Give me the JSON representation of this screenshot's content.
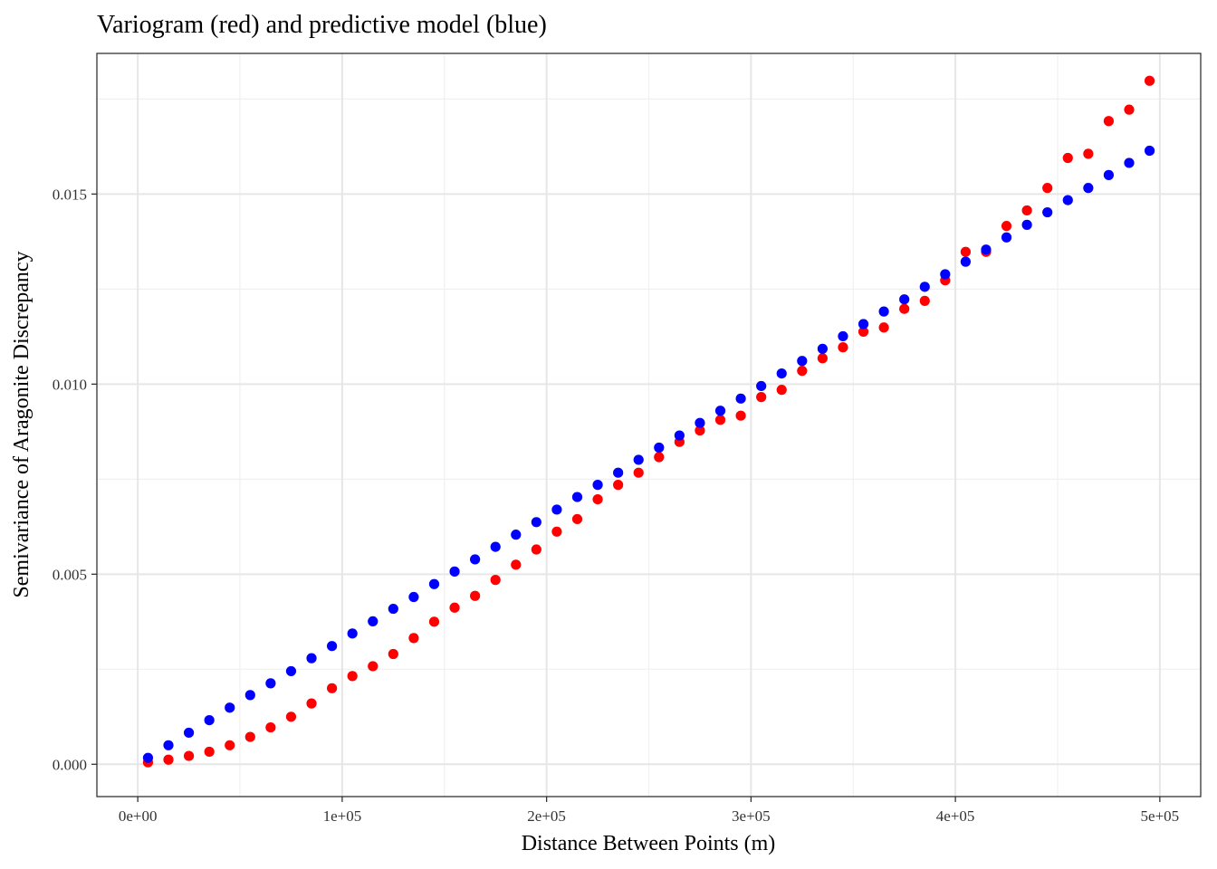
{
  "chart_data": {
    "type": "scatter",
    "title": "Variogram (red) and predictive model (blue)",
    "xlabel": "Distance Between Points (m)",
    "ylabel": "Semivariance of Aragonite Discrepancy",
    "xlim": [
      -20000,
      520000
    ],
    "ylim": [
      -0.00085,
      0.0187
    ],
    "x_ticks": [
      0,
      100000,
      200000,
      300000,
      400000,
      500000
    ],
    "x_tick_labels": [
      "0e+00",
      "1e+05",
      "2e+05",
      "3e+05",
      "4e+05",
      "5e+05"
    ],
    "y_ticks": [
      0,
      0.005,
      0.01,
      0.015
    ],
    "y_tick_labels": [
      "0.000",
      "0.005",
      "0.010",
      "0.015"
    ],
    "grid": true,
    "x": [
      5000,
      15000,
      25000,
      35000,
      45000,
      55000,
      65000,
      75000,
      85000,
      95000,
      105000,
      115000,
      125000,
      135000,
      145000,
      155000,
      165000,
      175000,
      185000,
      195000,
      205000,
      215000,
      225000,
      235000,
      245000,
      255000,
      265000,
      275000,
      285000,
      295000,
      305000,
      315000,
      325000,
      335000,
      345000,
      355000,
      365000,
      375000,
      385000,
      395000,
      405000,
      415000,
      425000,
      435000,
      445000,
      455000,
      465000,
      475000,
      485000,
      495000
    ],
    "series": [
      {
        "color": "#FF0000",
        "values": [
          5e-05,
          0.00012,
          0.00022,
          0.00033,
          0.0005,
          0.00072,
          0.00097,
          0.00125,
          0.0016,
          0.002,
          0.00232,
          0.00258,
          0.0029,
          0.00332,
          0.00375,
          0.00412,
          0.00443,
          0.00485,
          0.00525,
          0.00565,
          0.00612,
          0.00645,
          0.00697,
          0.00735,
          0.00767,
          0.00808,
          0.00848,
          0.00878,
          0.00906,
          0.00917,
          0.00966,
          0.00985,
          0.01035,
          0.01068,
          0.01097,
          0.01138,
          0.01149,
          0.01198,
          0.01219,
          0.01273,
          0.01348,
          0.01348,
          0.01416,
          0.01457,
          0.01516,
          0.01595,
          0.01606,
          0.01692,
          0.01722,
          0.01798
        ]
      },
      {
        "color": "#0000FF",
        "values": [
          0.00017,
          0.0005,
          0.00083,
          0.00116,
          0.00149,
          0.00182,
          0.00213,
          0.00245,
          0.00279,
          0.00311,
          0.00344,
          0.00376,
          0.00409,
          0.0044,
          0.00474,
          0.00507,
          0.00539,
          0.00572,
          0.00604,
          0.00637,
          0.0067,
          0.00703,
          0.00735,
          0.00767,
          0.00801,
          0.00833,
          0.00865,
          0.00898,
          0.0093,
          0.00962,
          0.00995,
          0.01028,
          0.01061,
          0.01093,
          0.01126,
          0.01158,
          0.01191,
          0.01223,
          0.01256,
          0.01289,
          0.01322,
          0.01354,
          0.01386,
          0.01419,
          0.01452,
          0.01484,
          0.01516,
          0.0155,
          0.01582,
          0.01614
        ]
      }
    ]
  }
}
